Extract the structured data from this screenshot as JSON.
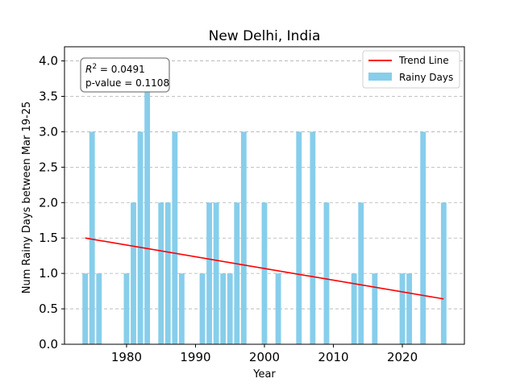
{
  "chart_data": {
    "type": "bar",
    "title": "New Delhi, India",
    "xlabel": "Year",
    "ylabel": "Num Rainy Days between Mar 19-25",
    "xlim": [
      1971,
      2029
    ],
    "ylim": [
      0,
      4.2
    ],
    "xticks": [
      1980,
      1990,
      2000,
      2010,
      2020
    ],
    "yticks": [
      0.0,
      0.5,
      1.0,
      1.5,
      2.0,
      2.5,
      3.0,
      3.5,
      4.0
    ],
    "ytick_labels": [
      "0.0",
      "0.5",
      "1.0",
      "1.5",
      "2.0",
      "2.5",
      "3.0",
      "3.5",
      "4.0"
    ],
    "grid": "y-dashed",
    "legend_position": "top-right",
    "series": [
      {
        "name": "Rainy Days",
        "kind": "bar",
        "color": "#87ceeb",
        "x": [
          1974,
          1975,
          1976,
          1980,
          1981,
          1982,
          1983,
          1985,
          1986,
          1987,
          1988,
          1991,
          1992,
          1993,
          1994,
          1995,
          1996,
          1997,
          2000,
          2002,
          2005,
          2007,
          2009,
          2013,
          2014,
          2016,
          2020,
          2021,
          2023,
          2026
        ],
        "values": [
          1,
          3,
          1,
          1,
          2,
          3,
          4,
          2,
          2,
          3,
          1,
          1,
          2,
          2,
          1,
          1,
          2,
          3,
          2,
          1,
          3,
          3,
          2,
          1,
          2,
          1,
          1,
          1,
          3,
          2
        ]
      },
      {
        "name": "Trend Line",
        "kind": "line",
        "color": "#ff0000",
        "x": [
          1974,
          2026
        ],
        "values": [
          1.5,
          0.64
        ]
      }
    ],
    "annotation": {
      "r2_label": "R",
      "r2_sup": "2",
      "r2_value": " = 0.0491",
      "pvalue": "p-value = 0.1108"
    }
  }
}
